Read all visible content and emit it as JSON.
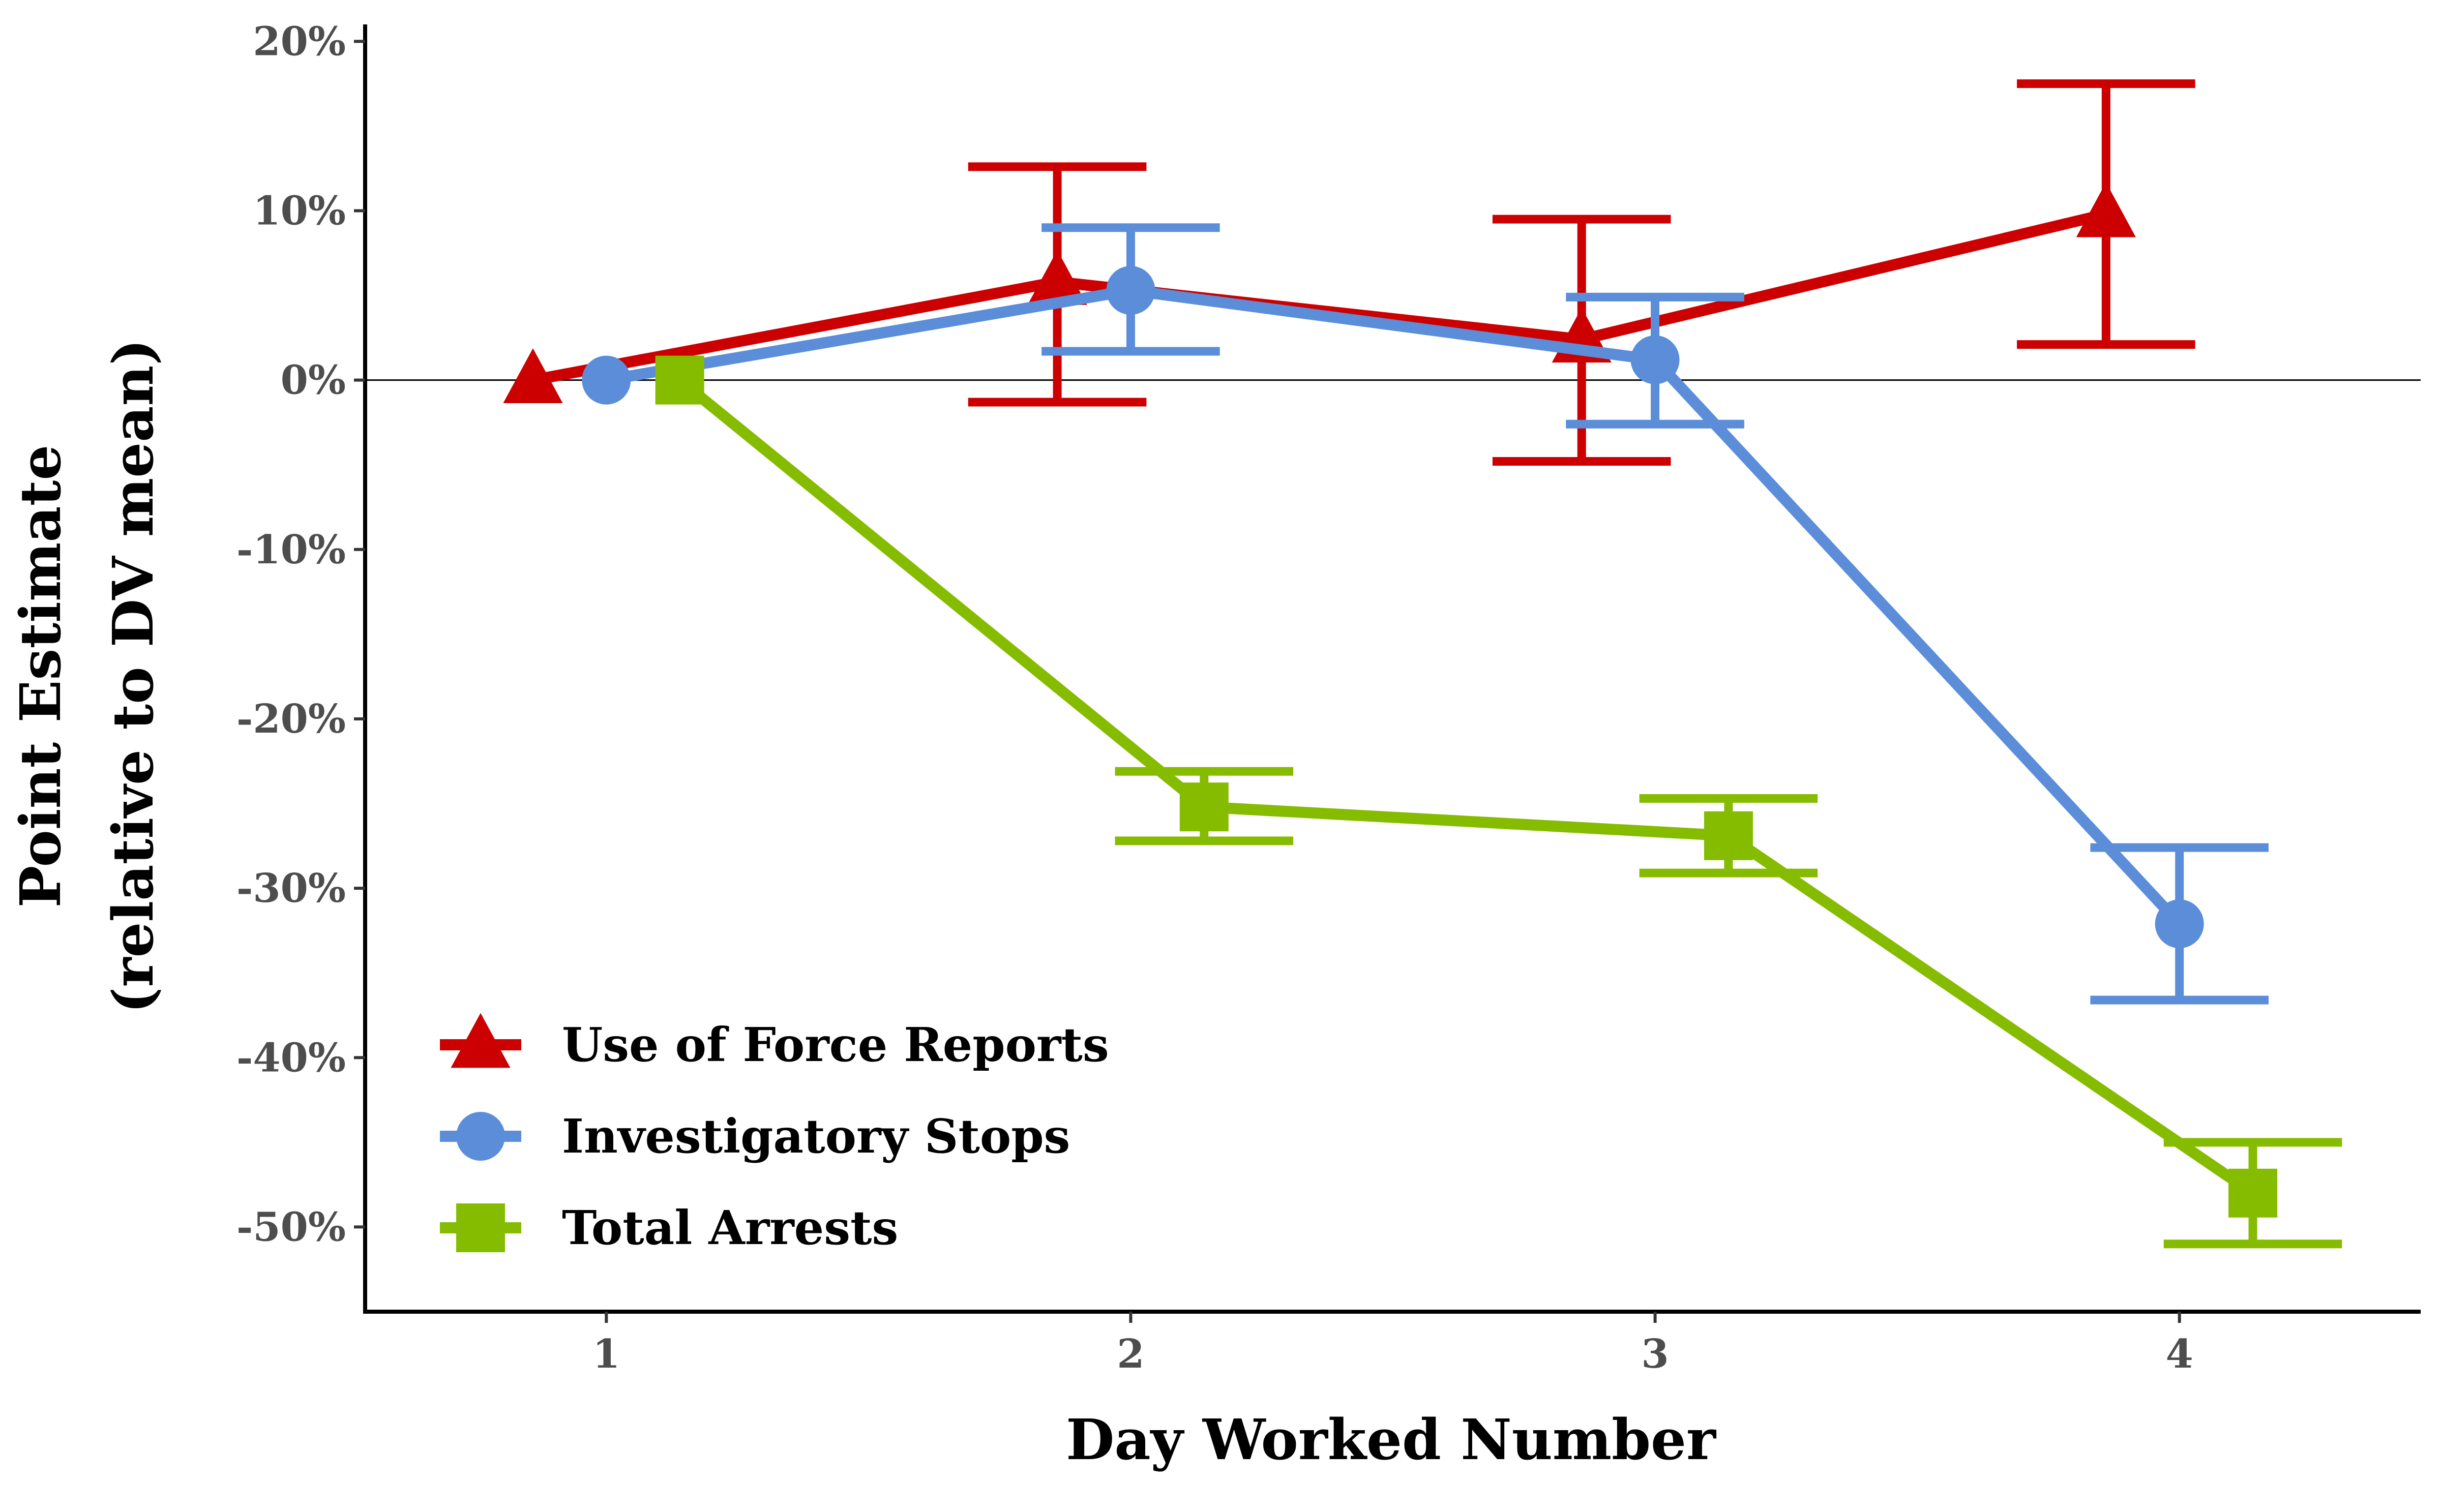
{
  "chart_data": {
    "type": "line",
    "title": "",
    "xlabel": "Day Worked Number",
    "ylabel_lines": [
      "Point Estimate",
      "(relative to DV mean)"
    ],
    "x_ticks": [
      "1",
      "2",
      "3",
      "4"
    ],
    "x_range": [
      0.54,
      4.46
    ],
    "y_range": [
      -55,
      21
    ],
    "y_ticks": [
      {
        "value": 20,
        "label": "20%"
      },
      {
        "value": 10,
        "label": "10%"
      },
      {
        "value": 0,
        "label": "0%"
      },
      {
        "value": -10,
        "label": "-10%"
      },
      {
        "value": -20,
        "label": "-20%"
      },
      {
        "value": -30,
        "label": "-30%"
      },
      {
        "value": -40,
        "label": "-40%"
      },
      {
        "value": -50,
        "label": "-50%"
      }
    ],
    "reference_line": 0,
    "legend_position": "bottom-left",
    "series": [
      {
        "name": "Use of Force Reports",
        "color": "#cc0000",
        "marker": "triangle",
        "x": [
          1,
          2,
          3,
          4
        ],
        "values": [
          0,
          5.8,
          2.4,
          9.8
        ],
        "ci_low": [
          null,
          -1.3,
          -4.8,
          2.1
        ],
        "ci_high": [
          null,
          12.6,
          9.5,
          17.5
        ]
      },
      {
        "name": "Investigatory Stops",
        "color": "#5b8dd9",
        "marker": "circle",
        "x": [
          1,
          2,
          3,
          4
        ],
        "values": [
          0,
          5.3,
          1.2,
          -32.1
        ],
        "ci_low": [
          null,
          1.7,
          -2.6,
          -36.6
        ],
        "ci_high": [
          null,
          9.0,
          4.9,
          -27.6
        ]
      },
      {
        "name": "Total Arrests",
        "color": "#85bc00",
        "marker": "square",
        "x": [
          1,
          2,
          3,
          4
        ],
        "values": [
          0,
          -25.2,
          -26.9,
          -48.0
        ],
        "ci_low": [
          null,
          -27.2,
          -29.1,
          -51.0
        ],
        "ci_high": [
          null,
          -23.1,
          -24.7,
          -45.0
        ]
      }
    ]
  }
}
